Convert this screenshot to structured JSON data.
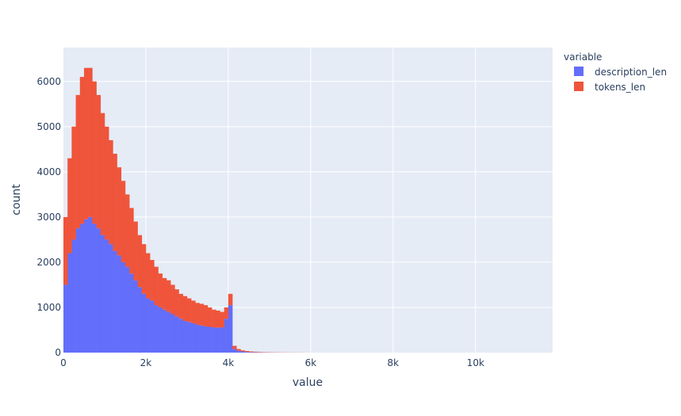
{
  "chart_data": {
    "type": "bar",
    "barmode": "stack",
    "histogram": true,
    "xlabel": "value",
    "ylabel": "count",
    "xlim": [
      0,
      11870
    ],
    "ylim": [
      0,
      6750
    ],
    "x_ticks": [
      0,
      2000,
      4000,
      6000,
      8000,
      10000
    ],
    "x_tick_labels": [
      "0",
      "2k",
      "4k",
      "6k",
      "8k",
      "10k"
    ],
    "y_ticks": [
      0,
      1000,
      2000,
      3000,
      4000,
      5000,
      6000
    ],
    "y_tick_labels": [
      "0",
      "1000",
      "2000",
      "3000",
      "4000",
      "5000",
      "6000"
    ],
    "grid": true,
    "background": "#e5ecf6",
    "legend": {
      "title": "variable",
      "placement": "right"
    },
    "bin_width": 100,
    "bin_starts": [
      0,
      100,
      200,
      300,
      400,
      500,
      600,
      700,
      800,
      900,
      1000,
      1100,
      1200,
      1300,
      1400,
      1500,
      1600,
      1700,
      1800,
      1900,
      2000,
      2100,
      2200,
      2300,
      2400,
      2500,
      2600,
      2700,
      2800,
      2900,
      3000,
      3100,
      3200,
      3300,
      3400,
      3500,
      3600,
      3700,
      3800,
      3900,
      4000,
      4100,
      4200,
      4300,
      4400,
      4500,
      4600,
      4700,
      4800,
      4900,
      5000,
      5100,
      5200,
      5300,
      5400,
      5500,
      5600,
      5700,
      5800,
      5900
    ],
    "series": [
      {
        "name": "description_len",
        "color": "#636efa",
        "values": [
          1500,
          2200,
          2500,
          2750,
          2850,
          2950,
          3000,
          2850,
          2750,
          2600,
          2500,
          2400,
          2250,
          2150,
          2000,
          1900,
          1750,
          1600,
          1450,
          1300,
          1200,
          1150,
          1050,
          1000,
          950,
          900,
          850,
          800,
          750,
          700,
          680,
          650,
          620,
          600,
          580,
          570,
          560,
          550,
          560,
          750,
          1050,
          80,
          40,
          25,
          15,
          10,
          8,
          6,
          5,
          4,
          3,
          2,
          2,
          1,
          1,
          1,
          1,
          0,
          0,
          0
        ]
      },
      {
        "name": "tokens_len",
        "color": "#ef553b",
        "values": [
          1500,
          2100,
          2500,
          2950,
          3250,
          3350,
          3300,
          3150,
          2950,
          2700,
          2500,
          2300,
          2150,
          1950,
          1800,
          1600,
          1450,
          1300,
          1150,
          1100,
          1000,
          900,
          850,
          750,
          700,
          700,
          650,
          600,
          550,
          550,
          520,
          500,
          480,
          480,
          470,
          430,
          390,
          380,
          340,
          250,
          250,
          70,
          40,
          25,
          20,
          15,
          12,
          9,
          7,
          6,
          5,
          4,
          3,
          3,
          2,
          2,
          1,
          2,
          1,
          1
        ]
      }
    ]
  }
}
